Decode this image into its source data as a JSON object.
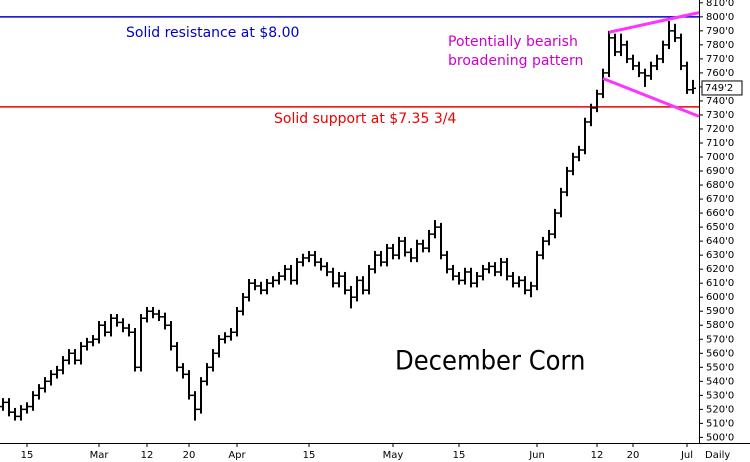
{
  "chart_data": {
    "type": "ohlc",
    "title": "December Corn",
    "x_label": "Daily",
    "categories": [
      null,
      null,
      null,
      null,
      "15",
      null,
      null,
      null,
      null,
      null,
      null,
      null,
      null,
      null,
      null,
      null,
      "Mar",
      null,
      null,
      null,
      null,
      null,
      null,
      null,
      "12",
      null,
      null,
      null,
      null,
      null,
      null,
      "20",
      null,
      null,
      null,
      null,
      null,
      null,
      null,
      "Apr",
      null,
      null,
      null,
      null,
      null,
      null,
      null,
      null,
      null,
      null,
      null,
      "15",
      null,
      null,
      null,
      null,
      null,
      null,
      null,
      null,
      null,
      null,
      null,
      null,
      null,
      "May",
      null,
      null,
      null,
      null,
      null,
      null,
      null,
      null,
      null,
      null,
      "15",
      null,
      null,
      null,
      null,
      null,
      null,
      null,
      null,
      null,
      null,
      null,
      null,
      "Jun",
      null,
      null,
      null,
      null,
      null,
      null,
      null,
      null,
      null,
      "12",
      null,
      null,
      null,
      null,
      null,
      "20",
      null,
      null,
      null,
      null,
      null,
      null,
      null,
      null,
      "Jul",
      null
    ],
    "series": [
      {
        "color": "#000000",
        "open": [
          522,
          525,
          518,
          515,
          520,
          522,
          530,
          535,
          540,
          545,
          548,
          555,
          560,
          555,
          565,
          568,
          570,
          580,
          575,
          585,
          582,
          578,
          575,
          550,
          585,
          590,
          588,
          586,
          580,
          565,
          550,
          545,
          530,
          520,
          540,
          550,
          560,
          570,
          572,
          575,
          590,
          600,
          610,
          608,
          605,
          610,
          612,
          615,
          620,
          612,
          625,
          628,
          630,
          625,
          622,
          618,
          610,
          615,
          605,
          600,
          612,
          605,
          620,
          630,
          625,
          635,
          630,
          640,
          632,
          628,
          638,
          635,
          645,
          650,
          630,
          620,
          615,
          612,
          618,
          610,
          615,
          620,
          622,
          618,
          625,
          615,
          610,
          612,
          605,
          608,
          630,
          640,
          645,
          660,
          675,
          690,
          700,
          705,
          725,
          735,
          745,
          760,
          785,
          775,
          780,
          770,
          765,
          760,
          758,
          765,
          770,
          780,
          790,
          785,
          765,
          748
        ],
        "high": [
          528,
          528,
          521,
          523,
          525,
          533,
          538,
          543,
          548,
          551,
          558,
          563,
          563,
          568,
          571,
          573,
          583,
          583,
          588,
          588,
          585,
          581,
          578,
          588,
          593,
          593,
          591,
          589,
          583,
          568,
          553,
          548,
          533,
          543,
          553,
          563,
          573,
          575,
          578,
          593,
          603,
          613,
          613,
          611,
          613,
          615,
          618,
          623,
          623,
          628,
          631,
          633,
          633,
          628,
          625,
          621,
          618,
          618,
          608,
          615,
          615,
          623,
          633,
          633,
          638,
          638,
          643,
          643,
          635,
          641,
          641,
          648,
          655,
          653,
          633,
          623,
          618,
          621,
          621,
          618,
          623,
          625,
          625,
          628,
          628,
          618,
          615,
          615,
          611,
          633,
          643,
          648,
          663,
          678,
          693,
          703,
          708,
          728,
          738,
          748,
          763,
          790,
          788,
          788,
          783,
          773,
          768,
          763,
          768,
          773,
          783,
          797,
          795,
          788,
          768,
          755
        ],
        "low": [
          519,
          515,
          512,
          512,
          517,
          519,
          527,
          532,
          537,
          542,
          545,
          552,
          552,
          552,
          562,
          565,
          567,
          572,
          572,
          579,
          575,
          572,
          547,
          547,
          582,
          585,
          583,
          577,
          562,
          547,
          542,
          527,
          512,
          517,
          537,
          547,
          557,
          567,
          569,
          572,
          587,
          597,
          605,
          602,
          602,
          607,
          609,
          612,
          609,
          609,
          622,
          625,
          622,
          619,
          615,
          607,
          607,
          602,
          592,
          597,
          602,
          602,
          617,
          622,
          622,
          627,
          627,
          629,
          625,
          625,
          632,
          632,
          642,
          627,
          617,
          612,
          609,
          609,
          607,
          607,
          612,
          617,
          615,
          615,
          612,
          607,
          607,
          602,
          600,
          605,
          627,
          637,
          642,
          657,
          672,
          687,
          697,
          702,
          722,
          732,
          742,
          757,
          772,
          772,
          767,
          762,
          757,
          750,
          755,
          762,
          767,
          777,
          782,
          762,
          745,
          745
        ],
        "close": [
          525,
          518,
          515,
          520,
          522,
          530,
          535,
          540,
          545,
          548,
          555,
          560,
          555,
          565,
          568,
          570,
          580,
          575,
          585,
          582,
          578,
          575,
          550,
          585,
          590,
          588,
          586,
          580,
          565,
          550,
          545,
          530,
          520,
          540,
          550,
          560,
          570,
          572,
          575,
          590,
          600,
          610,
          608,
          605,
          610,
          612,
          615,
          620,
          612,
          625,
          628,
          630,
          625,
          622,
          618,
          610,
          615,
          605,
          600,
          612,
          605,
          620,
          630,
          625,
          635,
          630,
          640,
          632,
          628,
          638,
          635,
          645,
          650,
          630,
          620,
          615,
          612,
          618,
          610,
          615,
          620,
          622,
          618,
          625,
          615,
          610,
          612,
          605,
          608,
          630,
          640,
          645,
          660,
          675,
          690,
          700,
          705,
          725,
          735,
          745,
          760,
          785,
          775,
          780,
          770,
          765,
          760,
          758,
          765,
          770,
          780,
          790,
          785,
          765,
          748,
          749
        ]
      }
    ],
    "ylim": [
      496,
      812
    ],
    "yticks": [
      {
        "value": 500,
        "label": "500'0"
      },
      {
        "value": 510,
        "label": "510'0"
      },
      {
        "value": 520,
        "label": "520'0"
      },
      {
        "value": 530,
        "label": "530'0"
      },
      {
        "value": 540,
        "label": "540'0"
      },
      {
        "value": 550,
        "label": "550'0"
      },
      {
        "value": 560,
        "label": "560'0"
      },
      {
        "value": 570,
        "label": "570'0"
      },
      {
        "value": 580,
        "label": "580'0"
      },
      {
        "value": 590,
        "label": "590'0"
      },
      {
        "value": 600,
        "label": "600'0"
      },
      {
        "value": 610,
        "label": "610'0"
      },
      {
        "value": 620,
        "label": "620'0"
      },
      {
        "value": 630,
        "label": "630'0"
      },
      {
        "value": 640,
        "label": "640'0"
      },
      {
        "value": 650,
        "label": "650'0"
      },
      {
        "value": 660,
        "label": "660'0"
      },
      {
        "value": 670,
        "label": "670'0"
      },
      {
        "value": 680,
        "label": "680'0"
      },
      {
        "value": 690,
        "label": "690'0"
      },
      {
        "value": 700,
        "label": "700'0"
      },
      {
        "value": 710,
        "label": "710'0"
      },
      {
        "value": 720,
        "label": "720'0"
      },
      {
        "value": 730,
        "label": "730'0"
      },
      {
        "value": 740,
        "label": "740'0"
      },
      {
        "value": 750,
        "label": "750'0"
      },
      {
        "value": 760,
        "label": "760'0"
      },
      {
        "value": 770,
        "label": "770'0"
      },
      {
        "value": 780,
        "label": "780'0"
      },
      {
        "value": 790,
        "label": "790'0"
      },
      {
        "value": 800,
        "label": "800'0"
      },
      {
        "value": 810,
        "label": "810'0"
      }
    ],
    "last_price": {
      "value": 749.25,
      "label": "749'2"
    },
    "hlines": [
      {
        "value": 800,
        "color": "#0000cc",
        "label": "Solid resistance at $8.00"
      },
      {
        "value": 735.75,
        "color": "#ee0000",
        "label": "Solid support at $7.35 3/4"
      }
    ],
    "trendlines": [
      {
        "color": "#ff33ff",
        "x": [
          101,
          116
        ],
        "values": [
          789,
          803
        ]
      },
      {
        "color": "#ff33ff",
        "x": [
          100,
          116
        ],
        "values": [
          756,
          729
        ]
      }
    ],
    "annotation": {
      "color": "#cc00cc",
      "lines": [
        "Potentially bearish",
        "broadening pattern"
      ]
    }
  }
}
